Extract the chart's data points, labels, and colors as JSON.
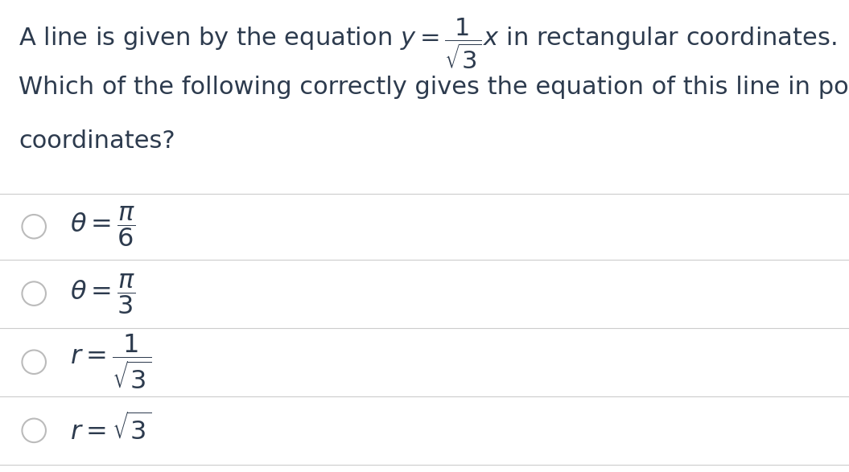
{
  "background_color": "#ffffff",
  "text_color": "#2d3b4e",
  "divider_color": "#cccccc",
  "circle_color": "#bbbbbb",
  "question_line1": "A line is given by the equation $y = \\dfrac{1}{\\sqrt{3}}x$ in rectangular coordinates.",
  "question_line2": "Which of the following correctly gives the equation of this line in polar",
  "question_line3": "coordinates?",
  "choice_math": [
    "$\\theta = \\dfrac{\\pi}{6}$",
    "$\\theta = \\dfrac{\\pi}{3}$",
    "$r = \\dfrac{1}{\\sqrt{3}}$",
    "$r = \\sqrt{3}$"
  ],
  "question_fontsize": 22,
  "choice_fontsize": 23,
  "figsize": [
    10.55,
    5.87
  ],
  "dpi": 100
}
